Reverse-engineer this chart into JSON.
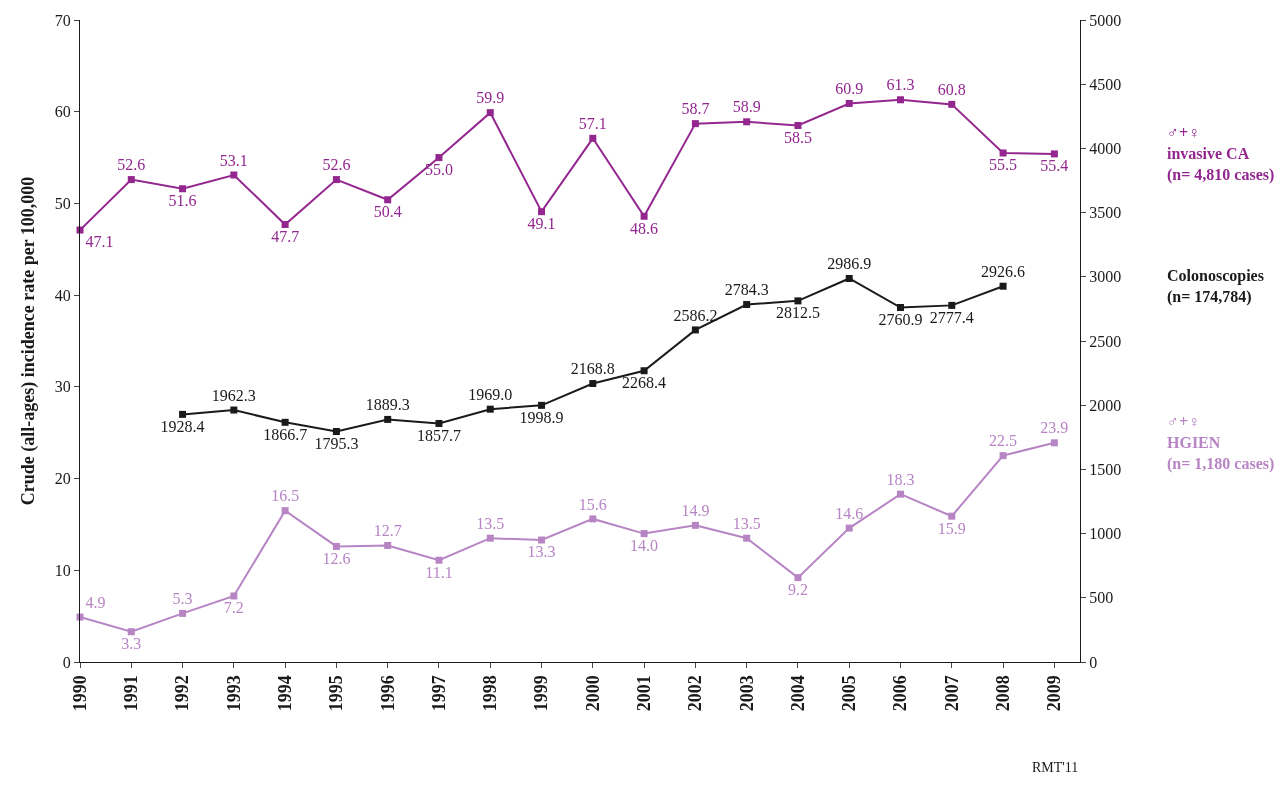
{
  "chart_data": {
    "type": "line",
    "ylabel": "Crude (all-ages) incidence rate per 100,000",
    "categories": [
      "1990",
      "1991",
      "1992",
      "1993",
      "1994",
      "1995",
      "1996",
      "1997",
      "1998",
      "1999",
      "2000",
      "2001",
      "2002",
      "2003",
      "2004",
      "2005",
      "2006",
      "2007",
      "2008",
      "2009"
    ],
    "series": [
      {
        "name": "♂+♀\ninvasive CA\n(n= 4,810 cases)",
        "color": "#93278f",
        "values": [
          47.1,
          52.6,
          51.6,
          53.1,
          47.7,
          52.6,
          50.4,
          55.0,
          59.9,
          49.1,
          57.1,
          48.6,
          58.7,
          58.9,
          58.5,
          60.9,
          61.3,
          60.8,
          55.5,
          55.4
        ],
        "value_labels": [
          "47.1",
          "52.6",
          "51.6",
          "53.1",
          "47.7",
          "52.6",
          "50.4",
          "55.0",
          "59.9",
          "49.1",
          "57.1",
          "48.6",
          "58.7",
          "58.9",
          "58.5",
          "60.9",
          "61.3",
          "60.8",
          "55.5",
          "55.4"
        ]
      },
      {
        "name": "Colonoscopies\n(n= 174,784)",
        "color": "#1a1a1a",
        "axis": "y2",
        "values": [
          null,
          null,
          1928.4,
          1962.3,
          1866.7,
          1795.3,
          1889.3,
          1857.7,
          1969.0,
          1998.9,
          2168.8,
          2268.4,
          2586.2,
          2784.3,
          2812.5,
          2986.9,
          2760.9,
          2777.4,
          2926.6,
          null
        ],
        "value_labels": [
          null,
          null,
          "1928.4",
          "1962.3",
          "1866.7",
          "1795.3",
          "1889.3",
          "1857.7",
          "1969.0",
          "1998.9",
          "2168.8",
          "2268.4",
          "2586.2",
          "2784.3",
          "2812.5",
          "2986.9",
          "2760.9",
          "2777.4",
          "2926.6",
          null
        ]
      },
      {
        "name": "♂+♀\nHGIEN\n(n= 1,180 cases)",
        "color": "#b784c4",
        "values": [
          4.9,
          3.3,
          5.3,
          7.2,
          16.5,
          12.6,
          12.7,
          11.1,
          13.5,
          13.3,
          15.6,
          14.0,
          14.9,
          13.5,
          9.2,
          14.6,
          18.3,
          15.9,
          22.5,
          23.9
        ],
        "value_labels": [
          "4.9",
          "3.3",
          "5.3",
          "7.2",
          "16.5",
          "12.6",
          "12.7",
          "11.1",
          "13.5",
          "13.3",
          "15.6",
          "14.0",
          "14.9",
          "13.5",
          "9.2",
          "14.6",
          "18.3",
          "15.9",
          "22.5",
          "23.9"
        ]
      }
    ],
    "ylim": [
      0,
      70
    ],
    "yticks": [
      0,
      10,
      20,
      30,
      40,
      50,
      60,
      70
    ],
    "y2lim": [
      0,
      5000
    ],
    "y2ticks": [
      0,
      500,
      1000,
      1500,
      2000,
      2500,
      3000,
      3500,
      4000,
      4500,
      5000
    ],
    "legend": false,
    "marker": "square",
    "line_style": "solid",
    "annotations": [
      "RMT'11"
    ]
  }
}
